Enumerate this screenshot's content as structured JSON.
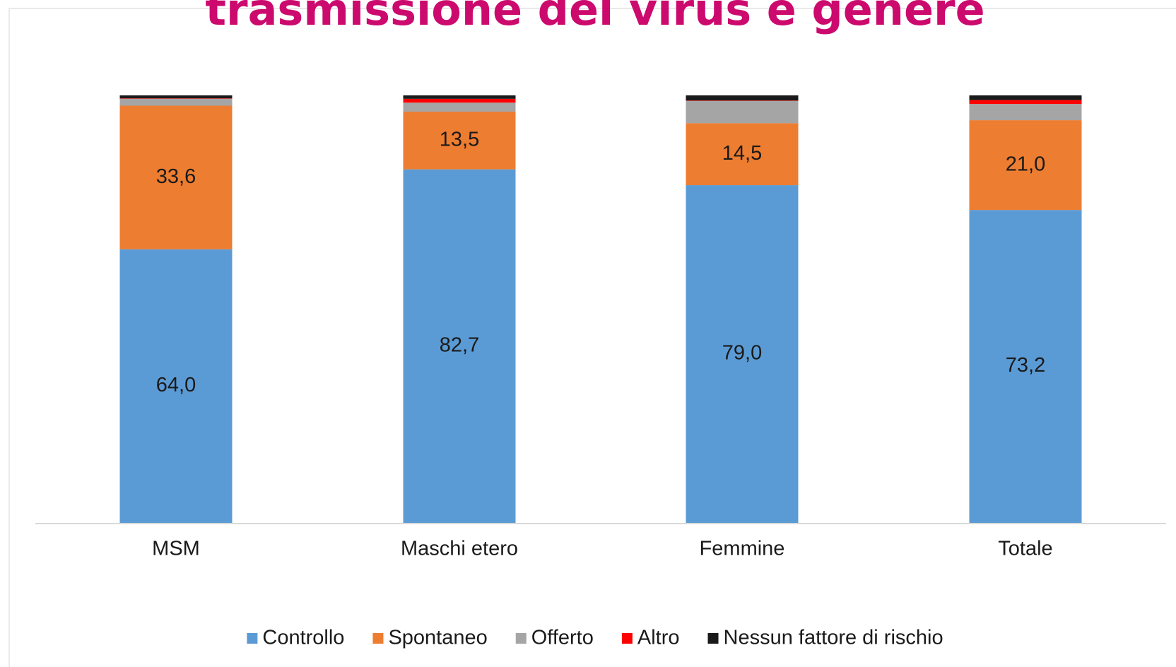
{
  "chart_data": {
    "type": "stacked_bar",
    "title": "trasmissione del virus e genere",
    "categories": [
      "MSM",
      "Maschi etero",
      "Femmine",
      "Totale"
    ],
    "series": [
      {
        "name": "Controllo",
        "color": "#5b9bd5",
        "values": [
          64.0,
          82.7,
          79.0,
          73.2
        ],
        "value_labels": [
          "64,0",
          "82,7",
          "79,0",
          "73,2"
        ]
      },
      {
        "name": "Spontaneo",
        "color": "#ed7d31",
        "values": [
          33.6,
          13.5,
          14.5,
          21.0
        ],
        "value_labels": [
          "33,6",
          "13,5",
          "14,5",
          "21,0"
        ]
      },
      {
        "name": "Offerto",
        "color": "#a5a5a5",
        "values": [
          1.6,
          2.1,
          5.2,
          3.8
        ]
      },
      {
        "name": "Altro",
        "color": "#ff0000",
        "values": [
          0.1,
          0.9,
          0.1,
          0.9
        ]
      },
      {
        "name": "Nessun fattore di rischio",
        "color": "#1a1a1a",
        "values": [
          0.7,
          0.8,
          1.2,
          1.1
        ]
      }
    ],
    "ylim": [
      0,
      100
    ]
  }
}
